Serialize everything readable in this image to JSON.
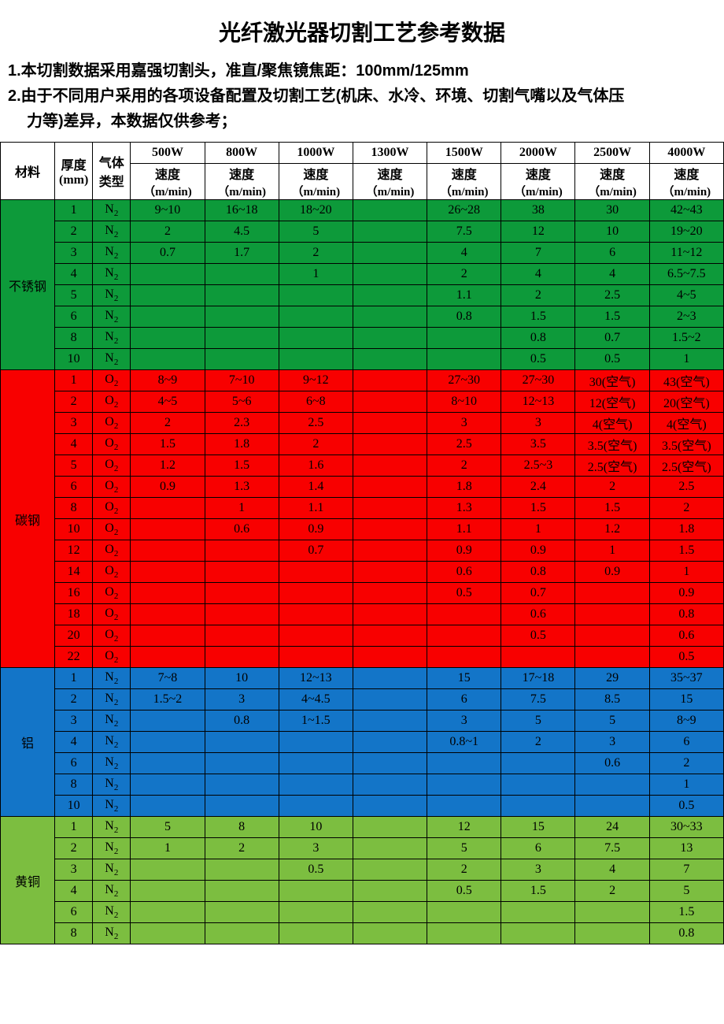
{
  "title": "光纤激光器切割工艺参考数据",
  "notes": {
    "n1": "1.本切割数据采用嘉强切割头，准直/聚焦镜焦距：100mm/125mm",
    "n2a": "2.由于不同用户采用的各项设备配置及切割工艺(机床、水冷、环境、切割气嘴以及气体压",
    "n2b": "力等)差异，本数据仅供参考；"
  },
  "headers": {
    "material": "材料",
    "thickness": "厚度",
    "thickness_unit": "(mm)",
    "gas": "气体",
    "gas2": "类型",
    "speed": "速度",
    "speed_unit": "（m/min)",
    "powers": [
      "500W",
      "800W",
      "1000W",
      "1300W",
      "1500W",
      "2000W",
      "2500W",
      "4000W"
    ]
  },
  "colors": {
    "ss": "#0d9a3a",
    "cs": "#f80000",
    "al": "#1375c8",
    "br": "#7cbe40"
  },
  "materials": [
    {
      "name": "不锈钢",
      "color": "ss",
      "rows": [
        {
          "t": "1",
          "g": "N₂",
          "v": [
            "9~10",
            "16~18",
            "18~20",
            "",
            "26~28",
            "38",
            "30",
            "42~43"
          ]
        },
        {
          "t": "2",
          "g": "N₂",
          "v": [
            "2",
            "4.5",
            "5",
            "",
            "7.5",
            "12",
            "10",
            "19~20"
          ]
        },
        {
          "t": "3",
          "g": "N₂",
          "v": [
            "0.7",
            "1.7",
            "2",
            "",
            "4",
            "7",
            "6",
            "11~12"
          ]
        },
        {
          "t": "4",
          "g": "N₂",
          "v": [
            "",
            "",
            "1",
            "",
            "2",
            "4",
            "4",
            "6.5~7.5"
          ]
        },
        {
          "t": "5",
          "g": "N₂",
          "v": [
            "",
            "",
            "",
            "",
            "1.1",
            "2",
            "2.5",
            "4~5"
          ]
        },
        {
          "t": "6",
          "g": "N₂",
          "v": [
            "",
            "",
            "",
            "",
            "0.8",
            "1.5",
            "1.5",
            "2~3"
          ]
        },
        {
          "t": "8",
          "g": "N₂",
          "v": [
            "",
            "",
            "",
            "",
            "",
            "0.8",
            "0.7",
            "1.5~2"
          ]
        },
        {
          "t": "10",
          "g": "N₂",
          "v": [
            "",
            "",
            "",
            "",
            "",
            "0.5",
            "0.5",
            "1"
          ]
        }
      ]
    },
    {
      "name": "碳钢",
      "color": "cs",
      "rows": [
        {
          "t": "1",
          "g": "O₂",
          "v": [
            "8~9",
            "7~10",
            "9~12",
            "",
            "27~30",
            "27~30",
            "30(空气)",
            "43(空气)"
          ]
        },
        {
          "t": "2",
          "g": "O₂",
          "v": [
            "4~5",
            "5~6",
            "6~8",
            "",
            "8~10",
            "12~13",
            "12(空气)",
            "20(空气)"
          ]
        },
        {
          "t": "3",
          "g": "O₂",
          "v": [
            "2",
            "2.3",
            "2.5",
            "",
            "3",
            "3",
            "4(空气)",
            "4(空气)"
          ]
        },
        {
          "t": "4",
          "g": "O₂",
          "v": [
            "1.5",
            "1.8",
            "2",
            "",
            "2.5",
            "3.5",
            "3.5(空气)",
            "3.5(空气)"
          ]
        },
        {
          "t": "5",
          "g": "O₂",
          "v": [
            "1.2",
            "1.5",
            "1.6",
            "",
            "2",
            "2.5~3",
            "2.5(空气)",
            "2.5(空气)"
          ]
        },
        {
          "t": "6",
          "g": "O₂",
          "v": [
            "0.9",
            "1.3",
            "1.4",
            "",
            "1.8",
            "2.4",
            "2",
            "2.5"
          ]
        },
        {
          "t": "8",
          "g": "O₂",
          "v": [
            "",
            "1",
            "1.1",
            "",
            "1.3",
            "1.5",
            "1.5",
            "2"
          ]
        },
        {
          "t": "10",
          "g": "O₂",
          "v": [
            "",
            "0.6",
            "0.9",
            "",
            "1.1",
            "1",
            "1.2",
            "1.8"
          ]
        },
        {
          "t": "12",
          "g": "O₂",
          "v": [
            "",
            "",
            "0.7",
            "",
            "0.9",
            "0.9",
            "1",
            "1.5"
          ]
        },
        {
          "t": "14",
          "g": "O₂",
          "v": [
            "",
            "",
            "",
            "",
            "0.6",
            "0.8",
            "0.9",
            "1"
          ]
        },
        {
          "t": "16",
          "g": "O₂",
          "v": [
            "",
            "",
            "",
            "",
            "0.5",
            "0.7",
            "",
            "0.9"
          ]
        },
        {
          "t": "18",
          "g": "O₂",
          "v": [
            "",
            "",
            "",
            "",
            "",
            "0.6",
            "",
            "0.8"
          ]
        },
        {
          "t": "20",
          "g": "O₂",
          "v": [
            "",
            "",
            "",
            "",
            "",
            "0.5",
            "",
            "0.6"
          ]
        },
        {
          "t": "22",
          "g": "O₂",
          "v": [
            "",
            "",
            "",
            "",
            "",
            "",
            "",
            "0.5"
          ]
        }
      ]
    },
    {
      "name": "铝",
      "color": "al",
      "rows": [
        {
          "t": "1",
          "g": "N₂",
          "v": [
            "7~8",
            "10",
            "12~13",
            "",
            "15",
            "17~18",
            "29",
            "35~37"
          ]
        },
        {
          "t": "2",
          "g": "N₂",
          "v": [
            "1.5~2",
            "3",
            "4~4.5",
            "",
            "6",
            "7.5",
            "8.5",
            "15"
          ]
        },
        {
          "t": "3",
          "g": "N₂",
          "v": [
            "",
            "0.8",
            "1~1.5",
            "",
            "3",
            "5",
            "5",
            "8~9"
          ]
        },
        {
          "t": "4",
          "g": "N₂",
          "v": [
            "",
            "",
            "",
            "",
            "0.8~1",
            "2",
            "3",
            "6"
          ]
        },
        {
          "t": "6",
          "g": "N₂",
          "v": [
            "",
            "",
            "",
            "",
            "",
            "",
            "0.6",
            "2"
          ]
        },
        {
          "t": "8",
          "g": "N₂",
          "v": [
            "",
            "",
            "",
            "",
            "",
            "",
            "",
            "1"
          ]
        },
        {
          "t": "10",
          "g": "N₂",
          "v": [
            "",
            "",
            "",
            "",
            "",
            "",
            "",
            "0.5"
          ]
        }
      ]
    },
    {
      "name": "黄铜",
      "color": "br",
      "rows": [
        {
          "t": "1",
          "g": "N₂",
          "v": [
            "5",
            "8",
            "10",
            "",
            "12",
            "15",
            "24",
            "30~33"
          ]
        },
        {
          "t": "2",
          "g": "N₂",
          "v": [
            "1",
            "2",
            "3",
            "",
            "5",
            "6",
            "7.5",
            "13"
          ]
        },
        {
          "t": "3",
          "g": "N₂",
          "v": [
            "",
            "",
            "0.5",
            "",
            "2",
            "3",
            "4",
            "7"
          ]
        },
        {
          "t": "4",
          "g": "N₂",
          "v": [
            "",
            "",
            "",
            "",
            "0.5",
            "1.5",
            "2",
            "5"
          ]
        },
        {
          "t": "6",
          "g": "N₂",
          "v": [
            "",
            "",
            "",
            "",
            "",
            "",
            "",
            "1.5"
          ]
        },
        {
          "t": "8",
          "g": "N₂",
          "v": [
            "",
            "",
            "",
            "",
            "",
            "",
            "",
            "0.8"
          ]
        }
      ]
    }
  ]
}
